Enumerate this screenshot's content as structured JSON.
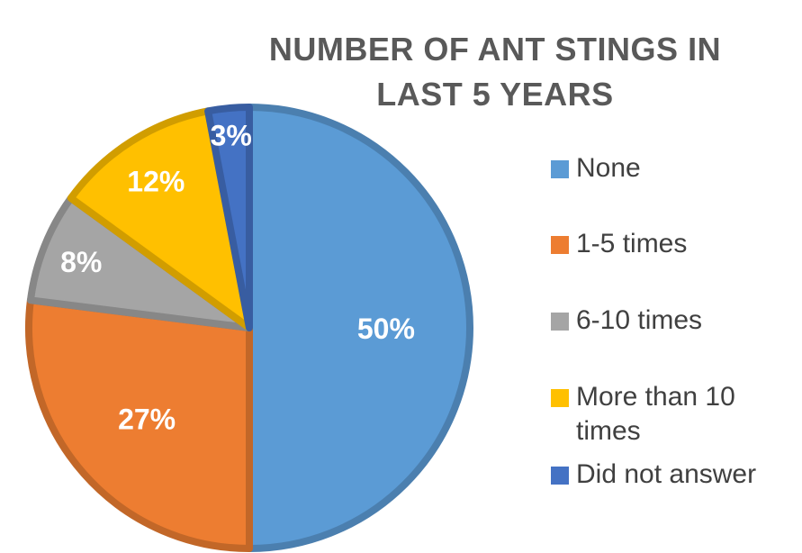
{
  "chart_data": {
    "type": "pie",
    "title": "NUMBER OF ANT STINGS IN LAST 5 YEARS",
    "categories": [
      "None",
      "1-5 times",
      "6-10 times",
      "More than 10 times",
      "Did not answer"
    ],
    "values": [
      50,
      27,
      8,
      12,
      3
    ],
    "labels": [
      "50%",
      "27%",
      "8%",
      "12%",
      "3%"
    ],
    "colors": [
      "#5b9bd5",
      "#ed7d31",
      "#a5a5a5",
      "#ffc000",
      "#4472c4"
    ],
    "legend_position": "right"
  }
}
